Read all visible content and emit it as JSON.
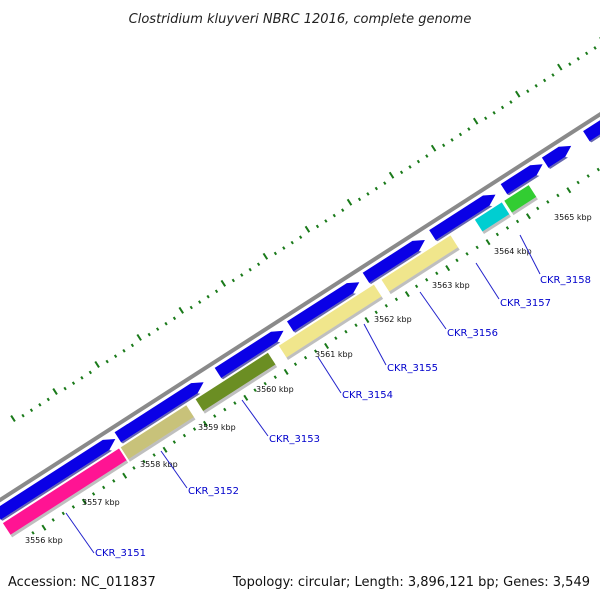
{
  "title": "Clostridium kluyveri NBRC 12016, complete genome",
  "footer": {
    "accession": "Accession: NC_011837",
    "topology": "Topology: circular; Length: 3,896,121 bp; Genes: 3,549"
  },
  "colors": {
    "backbone": "#8a8a8a",
    "cds": "#0a00e6",
    "tick": "#1a7a1a",
    "label": "#0000cc",
    "label_line": "#2222cc"
  },
  "kbp_labels": [
    "3556 kbp",
    "3557 kbp",
    "3558 kbp",
    "3559 kbp",
    "3560 kbp",
    "3561 kbp",
    "3562 kbp",
    "3563 kbp",
    "3564 kbp",
    "3565 kbp"
  ],
  "genes": [
    {
      "label": "CKR_3151",
      "color": "#ff1493"
    },
    {
      "label": "CKR_3152",
      "color": "#c8c27a"
    },
    {
      "label": "CKR_3153",
      "color": "#6b8e23"
    },
    {
      "label": "CKR_3154",
      "color": "#f0e68c"
    },
    {
      "label": "CKR_3155",
      "color": "#f0e68c"
    },
    {
      "label": "CKR_3156",
      "color": "#00ced1"
    },
    {
      "label": "CKR_3157",
      "color": "#32cd32"
    },
    {
      "label": "CKR_3158",
      "color": "#ff8c00"
    }
  ]
}
